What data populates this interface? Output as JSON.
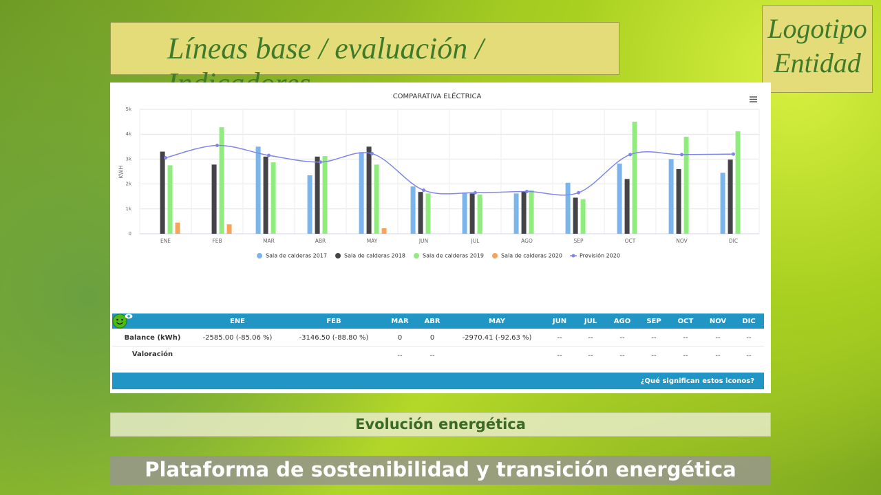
{
  "header": {
    "title": "Líneas base / evaluación / Indicadores",
    "logo": [
      "Logotipo",
      "Entidad"
    ]
  },
  "chart_data": {
    "type": "bar",
    "title": "COMPARATIVA ELÉCTRICA",
    "y_label": "KWH",
    "categories": [
      "ENE",
      "FEB",
      "MAR",
      "ABR",
      "MAY",
      "JUN",
      "JUL",
      "AGO",
      "SEP",
      "OCT",
      "NOV",
      "DIC"
    ],
    "series": [
      {
        "name": "Sala de calderas 2017",
        "color": "#7cb5ec",
        "values": [
          null,
          null,
          3500,
          2350,
          3280,
          1900,
          1650,
          1620,
          2050,
          2820,
          3000,
          2450
        ]
      },
      {
        "name": "Sala de calderas 2018",
        "color": "#434348",
        "values": [
          3300,
          2780,
          3100,
          3100,
          3500,
          1680,
          1620,
          1700,
          1450,
          2200,
          2600,
          2980
        ]
      },
      {
        "name": "Sala de calderas 2019",
        "color": "#90ed7d",
        "values": [
          2750,
          4280,
          2870,
          3120,
          2780,
          1620,
          1580,
          1750,
          1380,
          4500,
          3900,
          4120
        ]
      },
      {
        "name": "Sala de calderas 2020",
        "color": "#f7a35c",
        "values": [
          450,
          380,
          null,
          null,
          220,
          null,
          null,
          null,
          null,
          null,
          null,
          null
        ]
      },
      {
        "name": "Previsión 2020",
        "color": "#8085e9",
        "type": "line",
        "values": [
          3050,
          3550,
          3150,
          2880,
          3220,
          1750,
          1650,
          1700,
          1650,
          3180,
          3180,
          3200
        ]
      }
    ],
    "ylim": [
      0,
      5000
    ],
    "yticks": [
      0,
      {
        "value": 1000,
        "label": "1k"
      },
      {
        "value": 2000,
        "label": "2k"
      },
      {
        "value": 3000,
        "label": "3k"
      },
      {
        "value": 4000,
        "label": "4k"
      },
      {
        "value": 5000,
        "label": "5k"
      }
    ],
    "grid": true
  },
  "table": {
    "columns": [
      "ENE",
      "FEB",
      "MAR",
      "ABR",
      "MAY",
      "JUN",
      "JUL",
      "AGO",
      "SEP",
      "OCT",
      "NOV",
      "DIC"
    ],
    "rows": [
      {
        "label": "Balance (kWh)",
        "cells": [
          "-2585.00 (-85.06 %)",
          "-3146.50 (-88.80 %)",
          "0",
          "0",
          "-2970.41 (-92.63 %)",
          "--",
          "--",
          "--",
          "--",
          "--",
          "--",
          "--"
        ]
      },
      {
        "label": "Valoración",
        "cells": [
          null,
          null,
          "--",
          "--",
          null,
          "--",
          "--",
          "--",
          "--",
          "--",
          "--",
          "--"
        ]
      }
    ],
    "footer": "¿Qué significan estos iconos?"
  },
  "subtitle": "Evolución energética",
  "footer": "Plataforma de sostenibilidad y transición energética"
}
